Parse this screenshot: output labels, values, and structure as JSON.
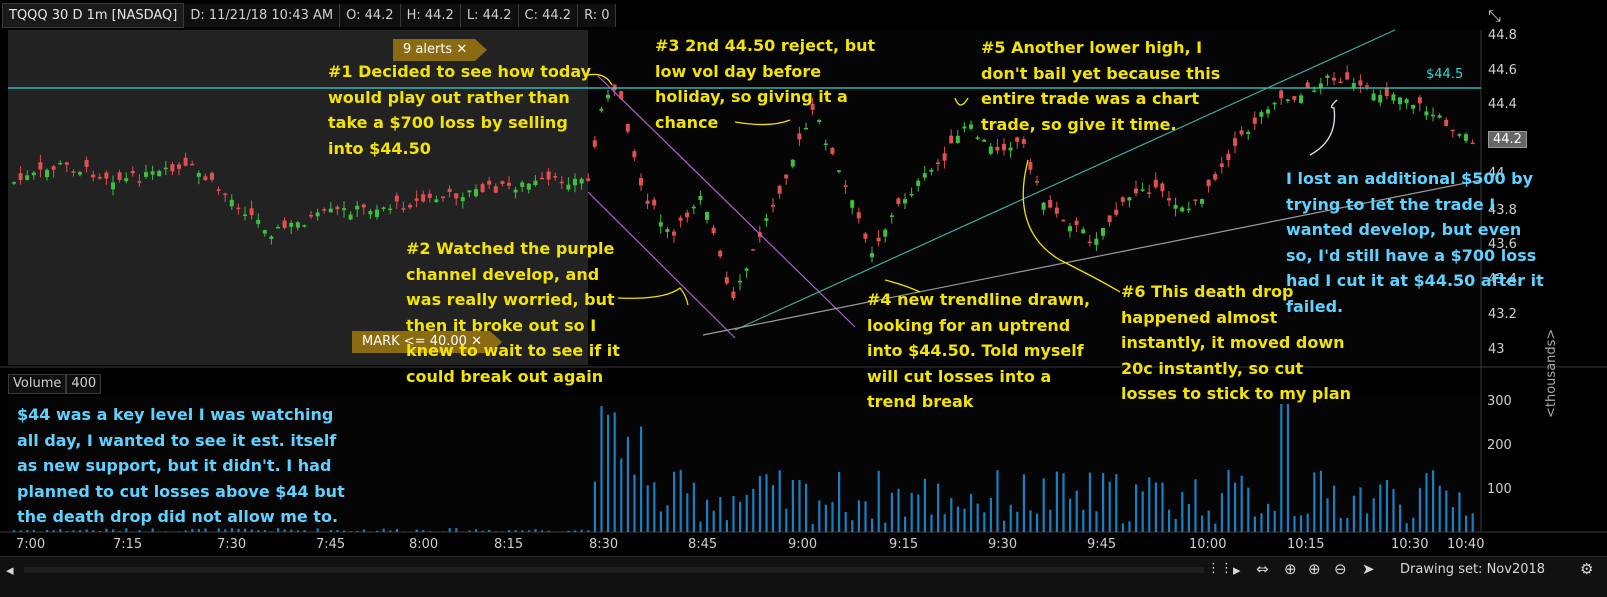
{
  "header": {
    "symbol": "TQQQ 30 D 1m [NASDAQ]",
    "date": "D: 11/21/18 10:43 AM",
    "open": "O: 44.2",
    "high": "H: 44.2",
    "low": "L: 44.2",
    "close": "C: 44.2",
    "range": "R: 0"
  },
  "price_axis": {
    "labels": [
      "44.8",
      "44.6",
      "44.4",
      "44.2",
      "44",
      "43.8",
      "43.6",
      "43.4",
      "43.2",
      "43"
    ],
    "current_price": "44.2",
    "level_label": "$44.5"
  },
  "time_axis": {
    "labels": [
      "7:00",
      "7:15",
      "7:30",
      "7:45",
      "8:00",
      "8:15",
      "8:30",
      "8:45",
      "9:00",
      "9:15",
      "9:30",
      "9:45",
      "10:00",
      "10:15",
      "10:30",
      "10:40"
    ]
  },
  "volume": {
    "title": "Volume",
    "value": "400",
    "axis_labels": [
      "300",
      "200",
      "100"
    ],
    "unit_label": "<thousands>"
  },
  "tags": {
    "alerts": "9 alerts",
    "mark": "MARK <= 40.00"
  },
  "annotations": {
    "a1": [
      "#1 Decided to see how today",
      "would play out rather than",
      "take a $700 loss by selling",
      "into $44.50"
    ],
    "a2": [
      "#2 Watched the purple",
      "channel develop, and",
      "was really worried, but",
      "then it broke out so I",
      "knew to wait to see if it",
      "could break out again"
    ],
    "a3": [
      "#3 2nd 44.50 reject, but",
      "low vol day before",
      "holiday, so giving it a",
      "chance"
    ],
    "a4": [
      "#4 new trendline drawn,",
      "looking for an uptrend",
      "into $44.50. Told myself",
      "will cut losses into a",
      "trend break"
    ],
    "a5": [
      "#5 Another lower high, I",
      "don't bail yet because this",
      "entire trade was a chart",
      "trade, so give it time."
    ],
    "a6": [
      "#6 This death drop",
      "happened almost",
      "instantly, it moved down",
      "20c instantly, so cut",
      "losses to stick to my plan"
    ],
    "a7": [
      "I lost an additional $500 by",
      "trying to let the trade I",
      "wanted develop, but even",
      "so, I'd still have a $700 loss",
      "had I cut it at $44.50 after it",
      "failed."
    ],
    "a8": [
      "$44 was a key level I was watching",
      "all day, I wanted to see it est. itself",
      "as new support, but it didn't. I had",
      "planned to cut losses above $44 but",
      "the death drop did not allow me to."
    ]
  },
  "footer": {
    "drawing_set": "Drawing set: Nov2018"
  },
  "colors": {
    "up": "#3fbf3f",
    "down": "#e05050",
    "annotation": "#f2e300",
    "level_line": "#33d6d6",
    "channel": "#b060d0",
    "volume_bar": "#1a7fc0"
  }
}
